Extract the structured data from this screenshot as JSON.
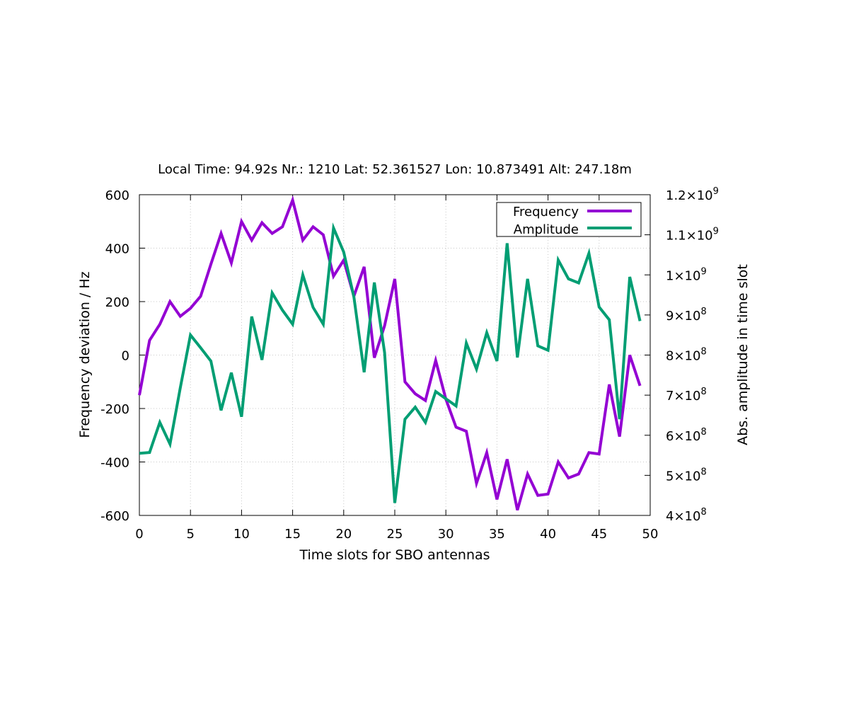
{
  "chart_data": {
    "type": "line",
    "title": "Local Time: 94.92s  Nr.: 1210  Lat: 52.361527  Lon: 10.873491  Alt: 247.18m",
    "xlabel": "Time slots for SBO antennas",
    "ylabel": "Frequency deviation / Hz",
    "y2label": "Abs. amplitude in time slot",
    "xlim": [
      0,
      50
    ],
    "ylim": [
      -600,
      600
    ],
    "y2lim": [
      400000000,
      1200000000
    ],
    "x_ticks": [
      "0",
      "5",
      "10",
      "15",
      "20",
      "25",
      "30",
      "35",
      "40",
      "45",
      "50"
    ],
    "y_ticks": [
      "600",
      "400",
      "200",
      "0",
      "-200",
      "-400",
      "-600"
    ],
    "y2_ticks": [
      {
        "mantissa": "1.2",
        "exp": "9"
      },
      {
        "mantissa": "1.1",
        "exp": "9"
      },
      {
        "mantissa": "1",
        "exp": "9"
      },
      {
        "mantissa": "9",
        "exp": "8"
      },
      {
        "mantissa": "8",
        "exp": "8"
      },
      {
        "mantissa": "7",
        "exp": "8"
      },
      {
        "mantissa": "6",
        "exp": "8"
      },
      {
        "mantissa": "5",
        "exp": "8"
      },
      {
        "mantissa": "4",
        "exp": "8"
      }
    ],
    "grid": true,
    "legend_position": "top-right",
    "x": [
      0,
      1,
      2,
      3,
      4,
      5,
      6,
      7,
      8,
      9,
      10,
      11,
      12,
      13,
      14,
      15,
      16,
      17,
      18,
      19,
      20,
      21,
      22,
      23,
      24,
      25,
      26,
      27,
      28,
      29,
      30,
      31,
      32,
      33,
      34,
      35,
      36,
      37,
      38,
      39,
      40,
      41,
      42,
      43,
      44,
      45,
      46,
      47,
      48,
      49
    ],
    "series": [
      {
        "name": "Frequency",
        "axis": "y",
        "color": "#9400d3",
        "values": [
          -150,
          55,
          115,
          200,
          145,
          175,
          220,
          340,
          455,
          345,
          500,
          430,
          495,
          455,
          480,
          580,
          430,
          480,
          450,
          295,
          355,
          220,
          330,
          -10,
          110,
          285,
          -100,
          -145,
          -170,
          -20,
          -165,
          -270,
          -285,
          -480,
          -365,
          -540,
          -390,
          -580,
          -445,
          -525,
          -520,
          -400,
          -460,
          -445,
          -365,
          -370,
          -110,
          -305,
          0,
          -115
        ]
      },
      {
        "name": "Amplitude",
        "axis": "y2",
        "color": "#009e73",
        "values": [
          555000000,
          557000000,
          632000000,
          578000000,
          718000000,
          850000000,
          818000000,
          785000000,
          662000000,
          756000000,
          646000000,
          896000000,
          788000000,
          955000000,
          912000000,
          877000000,
          1000000000,
          919000000,
          877000000,
          1117000000,
          1057000000,
          945000000,
          757000000,
          981000000,
          806000000,
          431000000,
          640000000,
          670000000,
          632000000,
          709000000,
          691000000,
          673000000,
          830000000,
          765000000,
          856000000,
          785000000,
          1079000000,
          794000000,
          990000000,
          823000000,
          812000000,
          1037000000,
          990000000,
          980000000,
          1054000000,
          920000000,
          888000000,
          640000000,
          995000000,
          885000000
        ]
      }
    ]
  }
}
